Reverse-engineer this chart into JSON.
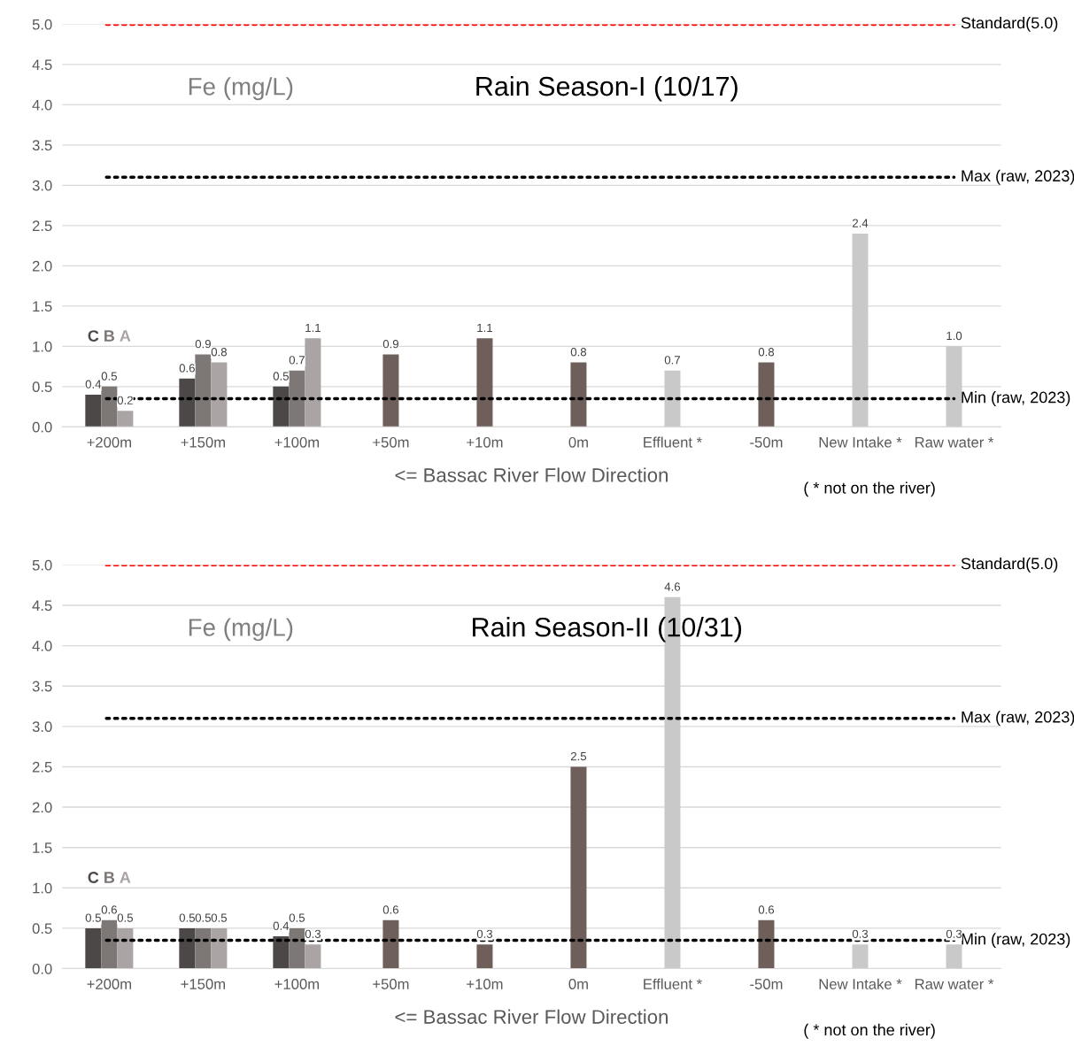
{
  "chart_data": [
    {
      "type": "bar",
      "title": "Rain Season-I (10/17)",
      "ylabel": "Fe (mg/L)",
      "xlabel": "<= Bassac River Flow Direction",
      "categories": [
        "+200m",
        "+150m",
        "+100m",
        "+50m",
        "+10m",
        "0m",
        "Effluent *",
        "-50m",
        "New Intake *",
        "Raw water *"
      ],
      "series": [
        {
          "name": "C",
          "color": "#4d4848",
          "values": [
            0.4,
            0.6,
            0.5,
            null,
            null,
            null,
            null,
            null,
            null,
            null
          ],
          "value_labels": [
            "0.4",
            "0.6",
            "0.5",
            null,
            null,
            null,
            null,
            null,
            null,
            null
          ]
        },
        {
          "name": "B",
          "color": "#7d7776",
          "values": [
            0.5,
            0.9,
            0.7,
            null,
            null,
            null,
            null,
            null,
            null,
            null
          ],
          "value_labels": [
            "0.5",
            "0.9",
            "0.7",
            null,
            null,
            null,
            null,
            null,
            null,
            null
          ]
        },
        {
          "name": "A",
          "color": "#aaa5a4",
          "values": [
            0.2,
            0.8,
            1.1,
            null,
            null,
            null,
            null,
            null,
            null,
            null
          ],
          "value_labels": [
            "0.2",
            "0.8",
            "1.1",
            null,
            null,
            null,
            null,
            null,
            null,
            null
          ]
        },
        {
          "color": "#6e5f5b",
          "values": [
            null,
            null,
            null,
            0.9,
            1.1,
            0.8,
            null,
            0.8,
            null,
            null
          ],
          "value_labels": [
            null,
            null,
            null,
            "0.9",
            "1.1",
            "0.8",
            null,
            "0.8",
            null,
            null
          ]
        },
        {
          "color": "#c9c9c9",
          "values": [
            null,
            null,
            null,
            null,
            null,
            null,
            0.7,
            null,
            2.4,
            1.0
          ],
          "value_labels": [
            null,
            null,
            null,
            null,
            null,
            null,
            "0.7",
            null,
            "2.4",
            "1.0"
          ]
        }
      ],
      "ylim": [
        0,
        5
      ],
      "yticks": [
        {
          "value": 0,
          "label": "0.0"
        },
        {
          "value": 0.5,
          "label": "0.5"
        },
        {
          "value": 1,
          "label": "1.0"
        },
        {
          "value": 1.5,
          "label": "1.5"
        },
        {
          "value": 2,
          "label": "2.0"
        },
        {
          "value": 2.5,
          "label": "2.5"
        },
        {
          "value": 3,
          "label": "3.0"
        },
        {
          "value": 3.5,
          "label": "3.5"
        },
        {
          "value": 4,
          "label": "4.0"
        },
        {
          "value": 4.5,
          "label": "4.5"
        },
        {
          "value": 5,
          "label": "5.0"
        }
      ],
      "grid": "y",
      "ref_lines": [
        {
          "axis": "y",
          "value": 5.0,
          "label": "Standard(5.0)",
          "color": "#ff0000",
          "line_style": "dotted"
        },
        {
          "axis": "y",
          "value": 3.1,
          "label": "Max (raw, 2023)",
          "color": "#000000",
          "line_style": "dotted"
        },
        {
          "axis": "y",
          "value": 0.35,
          "label": "Min (raw, 2023)",
          "color": "#000000",
          "line_style": "dotted"
        }
      ],
      "annotations": [
        "( * not on the river)"
      ]
    },
    {
      "type": "bar",
      "title": "Rain Season-II (10/31)",
      "ylabel": "Fe (mg/L)",
      "xlabel": "<= Bassac River Flow Direction",
      "categories": [
        "+200m",
        "+150m",
        "+100m",
        "+50m",
        "+10m",
        "0m",
        "Effluent *",
        "-50m",
        "New Intake *",
        "Raw water *"
      ],
      "series": [
        {
          "name": "C",
          "color": "#4d4848",
          "values": [
            0.5,
            0.5,
            0.4,
            null,
            null,
            null,
            null,
            null,
            null,
            null
          ],
          "value_labels": [
            "0.5",
            "0.5",
            "0.4",
            null,
            null,
            null,
            null,
            null,
            null,
            null
          ]
        },
        {
          "name": "B",
          "color": "#7d7776",
          "values": [
            0.6,
            0.5,
            0.5,
            null,
            null,
            null,
            null,
            null,
            null,
            null
          ],
          "value_labels": [
            "0.6",
            "0.5",
            "0.5",
            null,
            null,
            null,
            null,
            null,
            null,
            null
          ]
        },
        {
          "name": "A",
          "color": "#aaa5a4",
          "values": [
            0.5,
            0.5,
            0.3,
            null,
            null,
            null,
            null,
            null,
            null,
            null
          ],
          "value_labels": [
            "0.5",
            "0.5",
            "0.3",
            null,
            null,
            null,
            null,
            null,
            null,
            null
          ]
        },
        {
          "color": "#6e5f5b",
          "values": [
            null,
            null,
            null,
            0.6,
            0.3,
            2.5,
            null,
            0.6,
            null,
            null
          ],
          "value_labels": [
            null,
            null,
            null,
            "0.6",
            "0.3",
            "2.5",
            null,
            "0.6",
            null,
            null
          ]
        },
        {
          "color": "#c9c9c9",
          "values": [
            null,
            null,
            null,
            null,
            null,
            null,
            4.6,
            null,
            0.3,
            0.3
          ],
          "value_labels": [
            null,
            null,
            null,
            null,
            null,
            null,
            "4.6",
            null,
            "0.3",
            "0.3"
          ]
        }
      ],
      "ylim": [
        0,
        5
      ],
      "yticks": [
        {
          "value": 0,
          "label": "0.0"
        },
        {
          "value": 0.5,
          "label": "0.5"
        },
        {
          "value": 1,
          "label": "1.0"
        },
        {
          "value": 1.5,
          "label": "1.5"
        },
        {
          "value": 2,
          "label": "2.0"
        },
        {
          "value": 2.5,
          "label": "2.5"
        },
        {
          "value": 3,
          "label": "3.0"
        },
        {
          "value": 3.5,
          "label": "3.5"
        },
        {
          "value": 4,
          "label": "4.0"
        },
        {
          "value": 4.5,
          "label": "4.5"
        },
        {
          "value": 5,
          "label": "5.0"
        }
      ],
      "grid": "y",
      "ref_lines": [
        {
          "axis": "y",
          "value": 5.0,
          "label": "Standard(5.0)",
          "color": "#ff0000",
          "line_style": "dotted"
        },
        {
          "axis": "y",
          "value": 3.1,
          "label": "Max (raw, 2023)",
          "color": "#000000",
          "line_style": "dotted"
        },
        {
          "axis": "y",
          "value": 0.35,
          "label": "Min (raw, 2023)",
          "color": "#000000",
          "line_style": "dotted"
        }
      ],
      "annotations": [
        "( * not on the river)"
      ]
    }
  ]
}
